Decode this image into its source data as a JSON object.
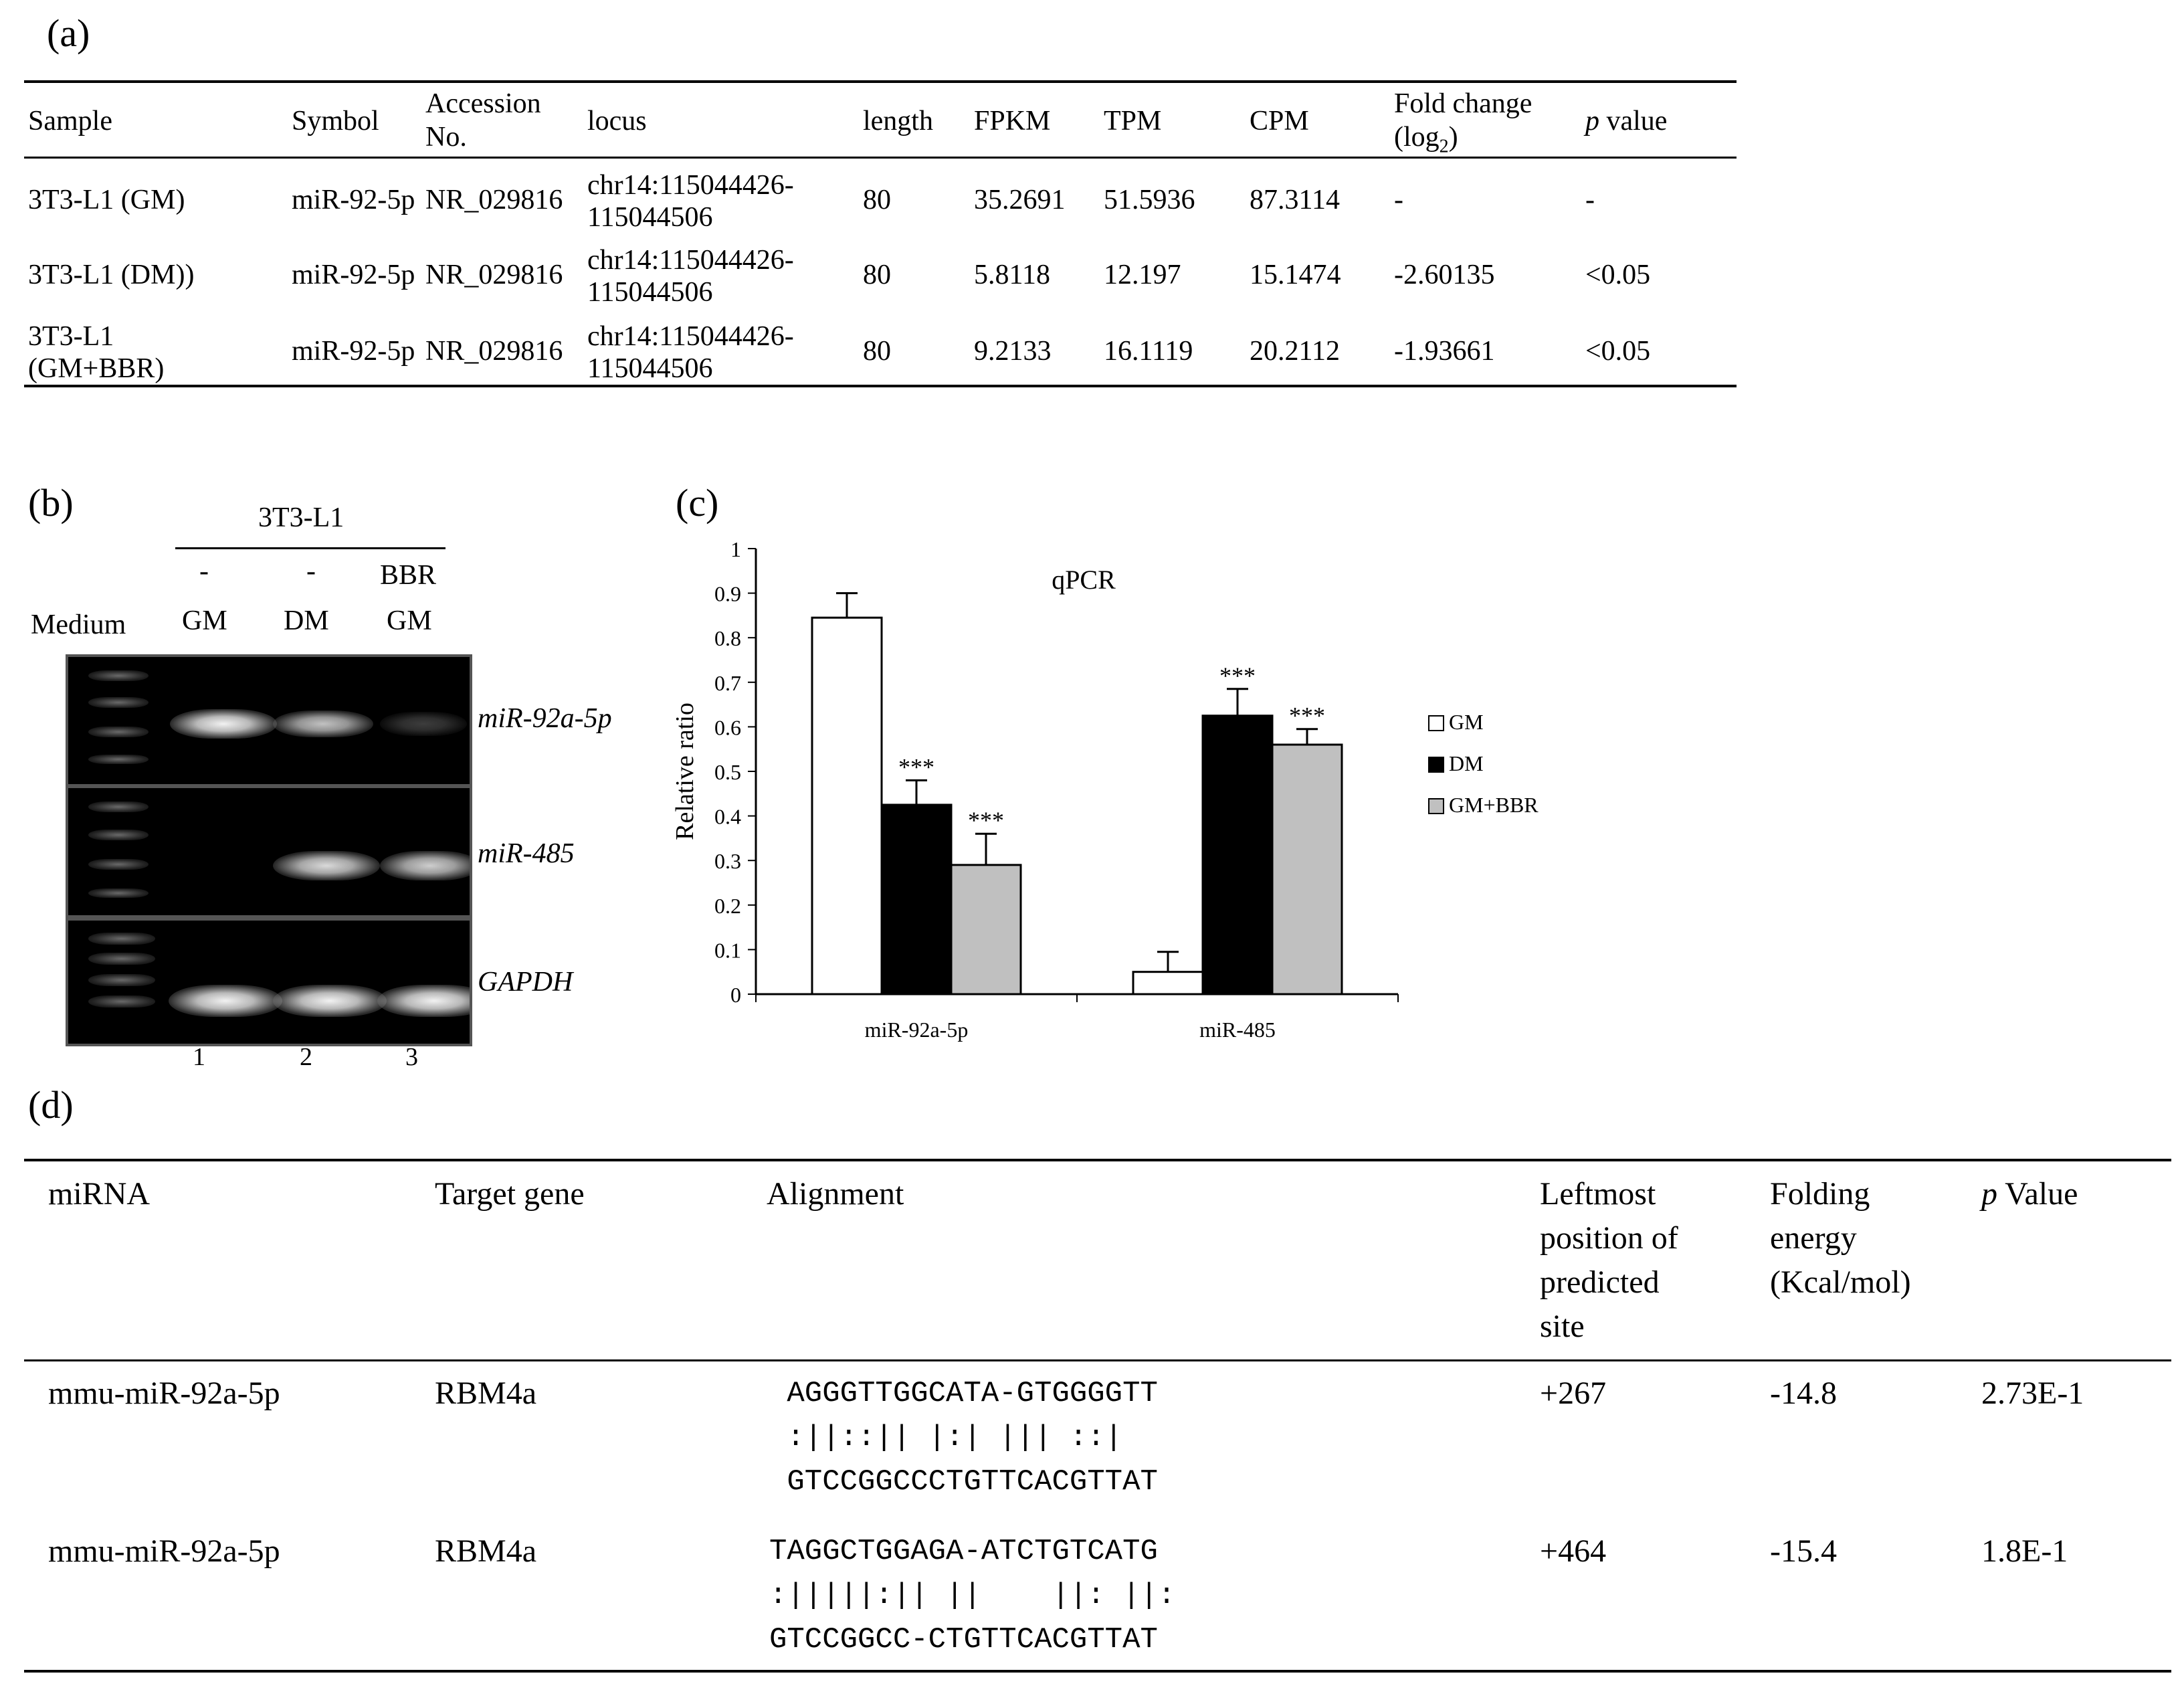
{
  "panel_labels": {
    "a": "(a)",
    "b": "(b)",
    "c": "(c)",
    "d": "(d)"
  },
  "table_a": {
    "headers": {
      "sample": "Sample",
      "symbol": "Symbol",
      "accession_1": "Accession",
      "accession_2": "No.",
      "locus": "locus",
      "length": "length",
      "fpkm": "FPKM",
      "tpm": "TPM",
      "cpm": "CPM",
      "fold_1": "Fold change",
      "fold_2": "(log",
      "fold_sub": "2",
      "fold_close": ")",
      "p_italic": "p",
      "p_rest": " value"
    },
    "rows": [
      {
        "sample_1": "3T3-L1 (GM)",
        "sample_2": "",
        "symbol": "miR-92-5p",
        "accession": "NR_029816",
        "locus_1": "chr14:115044426-",
        "locus_2": "115044506",
        "length": "80",
        "fpkm": "35.2691",
        "tpm": "51.5936",
        "cpm": "87.3114",
        "fold": "-",
        "p": "-"
      },
      {
        "sample_1": "3T3-L1 (DM))",
        "sample_2": "",
        "symbol": "miR-92-5p",
        "accession": "NR_029816",
        "locus_1": "chr14:115044426-",
        "locus_2": "115044506",
        "length": "80",
        "fpkm": "5.8118",
        "tpm": "12.197",
        "cpm": "15.1474",
        "fold": "-2.60135",
        "p": "<0.05"
      },
      {
        "sample_1": "3T3-L1",
        "sample_2": "(GM+BBR)",
        "symbol": "miR-92-5p",
        "accession": "NR_029816",
        "locus_1": "chr14:115044426-",
        "locus_2": "115044506",
        "length": "80",
        "fpkm": "9.2133",
        "tpm": "16.1119",
        "cpm": "20.2112",
        "fold": "-1.93661",
        "p": "<0.05"
      }
    ]
  },
  "gel": {
    "cell_line": "3T3-L1",
    "treatments": [
      "-",
      "-",
      "BBR"
    ],
    "medium_label": "Medium",
    "media": [
      "GM",
      "DM",
      "GM"
    ],
    "lane_numbers": [
      "1",
      "2",
      "3"
    ],
    "bands": [
      {
        "label": "miR-92a-5p",
        "intensity": [
          0.95,
          0.8,
          0.25
        ]
      },
      {
        "label": "miR-485",
        "intensity": [
          0.0,
          0.9,
          0.85
        ]
      },
      {
        "label": "GAPDH",
        "intensity": [
          1.0,
          1.0,
          1.0
        ]
      }
    ]
  },
  "chart_data": {
    "type": "bar",
    "title": "qPCR",
    "ylabel": "Relative ratio",
    "xlabel": "",
    "categories": [
      "miR-92a-5p",
      "miR-485"
    ],
    "ylim": [
      0,
      1
    ],
    "yticks": [
      "0",
      "0.1",
      "0.2",
      "0.3",
      "0.4",
      "0.5",
      "0.6",
      "0.7",
      "0.8",
      "0.9",
      "1"
    ],
    "series": [
      {
        "name": "GM",
        "values": [
          0.845,
          0.05
        ],
        "errors": [
          0.055,
          0.045
        ],
        "sig": [
          "",
          ""
        ],
        "color": "#ffffff"
      },
      {
        "name": "DM",
        "values": [
          0.425,
          0.625
        ],
        "errors": [
          0.055,
          0.06
        ],
        "sig": [
          "***",
          "***"
        ],
        "color": "#000000"
      },
      {
        "name": "GM+BBR",
        "values": [
          0.29,
          0.56
        ],
        "errors": [
          0.07,
          0.035
        ],
        "sig": [
          "***",
          "***"
        ],
        "color": "#c0c0c0"
      }
    ],
    "legend_position": "right"
  },
  "table_d": {
    "headers": {
      "mirna": "miRNA",
      "target": "Target gene",
      "alignment": "Alignment",
      "leftmost_1": "Leftmost",
      "leftmost_2": "position of",
      "leftmost_3": "predicted",
      "leftmost_4": "site",
      "folding_1": "Folding",
      "folding_2": "energy",
      "folding_3": " (Kcal/mol)",
      "p_italic": "p",
      "p_rest": " Value"
    },
    "rows": [
      {
        "mirna": "mmu-miR-92a-5p",
        "target": "RBM4a",
        "align_1": " AGGGTTGGCATA-GTGGGGTT",
        "align_2": " :||::|| |:| ||| ::|",
        "align_3": " GTCCGGCCCTGTTCACGTTAT",
        "leftmost": "+267",
        "folding": "-14.8",
        "p": "2.73E-1"
      },
      {
        "mirna": "mmu-miR-92a-5p",
        "target": "RBM4a",
        "align_1": "TAGGCTGGAGA-ATCTGTCATG",
        "align_2": ":|||||:|| ||    ||: ||:",
        "align_3": "GTCCGGCC-CTGTTCACGTTAT",
        "leftmost": "+464",
        "folding": "-15.4",
        "p": "1.8E-1"
      }
    ]
  }
}
